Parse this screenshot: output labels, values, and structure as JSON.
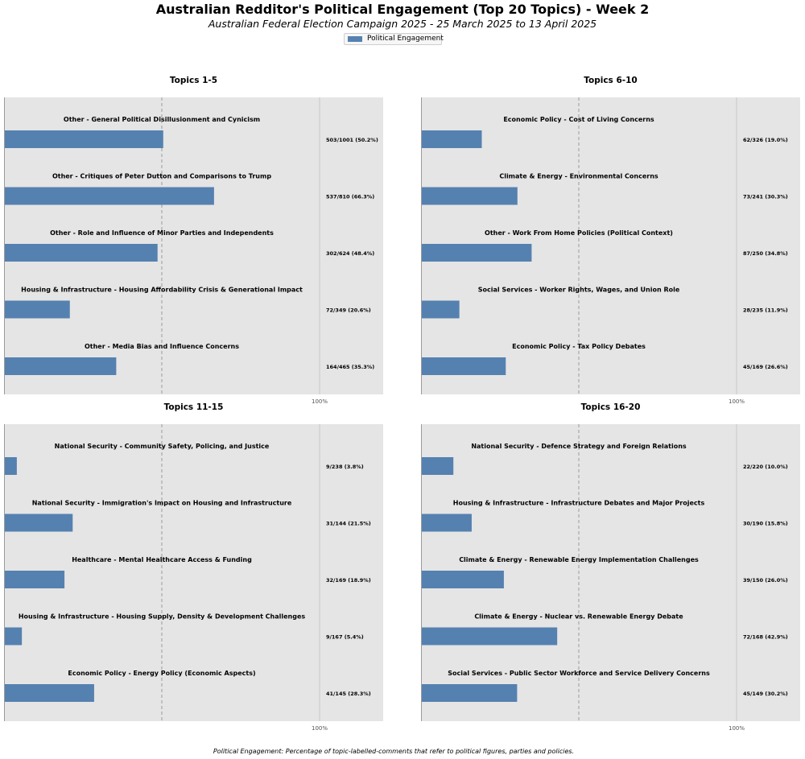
{
  "title": "Australian Redditor's Political Engagement (Top 20 Topics) - Week 2",
  "subtitle": "Australian Federal Election Campaign 2025 - 25 March 2025 to 13 April 2025",
  "legend": {
    "label": "Political Engagement",
    "color": "#5581b0"
  },
  "footnote": "Political Engagement: Percentage of topic-labelled-comments that refer to political figures, parties and policies.",
  "chart_data": [
    {
      "type": "bar",
      "orientation": "horizontal",
      "title": "Topics 1-5",
      "xlim": [
        0,
        120
      ],
      "xtick": "100%",
      "reference_line": 50,
      "categories": [
        "Other - General Political Disillusionment and Cynicism",
        "Other - Critiques of Peter Dutton and Comparisons to Trump",
        "Other - Role and Influence of Minor Parties and Independents",
        "Housing & Infrastructure - Housing Affordability Crisis & Generational Impact",
        "Other - Media Bias and Influence Concerns"
      ],
      "series": [
        {
          "name": "Political Engagement",
          "values": [
            50.2,
            66.3,
            48.4,
            20.6,
            35.3
          ]
        }
      ],
      "value_labels": [
        "503/1001 (50.2%)",
        "537/810 (66.3%)",
        "302/624 (48.4%)",
        "72/349 (20.6%)",
        "164/465 (35.3%)"
      ]
    },
    {
      "type": "bar",
      "orientation": "horizontal",
      "title": "Topics 6-10",
      "xlim": [
        0,
        120
      ],
      "xtick": "100%",
      "reference_line": 50,
      "categories": [
        "Economic Policy - Cost of Living Concerns",
        "Climate & Energy - Environmental Concerns",
        "Other - Work From Home Policies (Political Context)",
        "Social Services - Worker Rights, Wages, and Union Role",
        "Economic Policy - Tax Policy Debates"
      ],
      "series": [
        {
          "name": "Political Engagement",
          "values": [
            19.0,
            30.3,
            34.8,
            11.9,
            26.6
          ]
        }
      ],
      "value_labels": [
        "62/326 (19.0%)",
        "73/241 (30.3%)",
        "87/250 (34.8%)",
        "28/235 (11.9%)",
        "45/169 (26.6%)"
      ]
    },
    {
      "type": "bar",
      "orientation": "horizontal",
      "title": "Topics 11-15",
      "xlim": [
        0,
        120
      ],
      "xtick": "100%",
      "reference_line": 50,
      "categories": [
        "National Security - Community Safety, Policing, and Justice",
        "National Security - Immigration's Impact on Housing and Infrastructure",
        "Healthcare - Mental Healthcare Access & Funding",
        "Housing & Infrastructure - Housing Supply, Density & Development Challenges",
        "Economic Policy - Energy Policy (Economic Aspects)"
      ],
      "series": [
        {
          "name": "Political Engagement",
          "values": [
            3.8,
            21.5,
            18.9,
            5.4,
            28.3
          ]
        }
      ],
      "value_labels": [
        "9/238 (3.8%)",
        "31/144 (21.5%)",
        "32/169 (18.9%)",
        "9/167 (5.4%)",
        "41/145 (28.3%)"
      ]
    },
    {
      "type": "bar",
      "orientation": "horizontal",
      "title": "Topics 16-20",
      "xlim": [
        0,
        120
      ],
      "xtick": "100%",
      "reference_line": 50,
      "categories": [
        "National Security - Defence Strategy and Foreign Relations",
        "Housing & Infrastructure - Infrastructure Debates and Major Projects",
        "Climate & Energy - Renewable Energy Implementation Challenges",
        "Climate & Energy - Nuclear vs. Renewable Energy Debate",
        "Social Services - Public Sector Workforce and Service Delivery Concerns"
      ],
      "series": [
        {
          "name": "Political Engagement",
          "values": [
            10.0,
            15.8,
            26.0,
            42.9,
            30.2
          ]
        }
      ],
      "value_labels": [
        "22/220 (10.0%)",
        "30/190 (15.8%)",
        "39/150 (26.0%)",
        "72/168 (42.9%)",
        "45/149 (30.2%)"
      ]
    }
  ]
}
